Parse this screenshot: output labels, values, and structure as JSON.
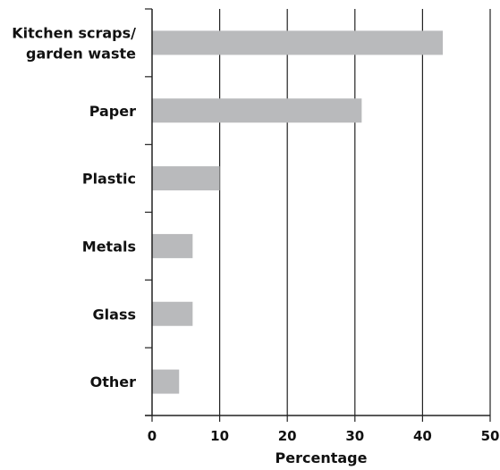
{
  "chart_data": {
    "type": "bar",
    "orientation": "horizontal",
    "categories": [
      [
        "Kitchen scraps/",
        "garden waste"
      ],
      [
        "Paper"
      ],
      [
        "Plastic"
      ],
      [
        "Metals"
      ],
      [
        "Glass"
      ],
      [
        "Other"
      ]
    ],
    "values": [
      43,
      31,
      10,
      6,
      6,
      4
    ],
    "title": "",
    "xlabel": "Percentage",
    "ylabel": "",
    "xlim": [
      0,
      50
    ],
    "xticks": [
      0,
      10,
      20,
      30,
      40,
      50
    ],
    "grid": "vertical",
    "legend": "none",
    "colors": {
      "bar": "#b9babc",
      "axis": "#222222",
      "grid": "#222222"
    }
  }
}
